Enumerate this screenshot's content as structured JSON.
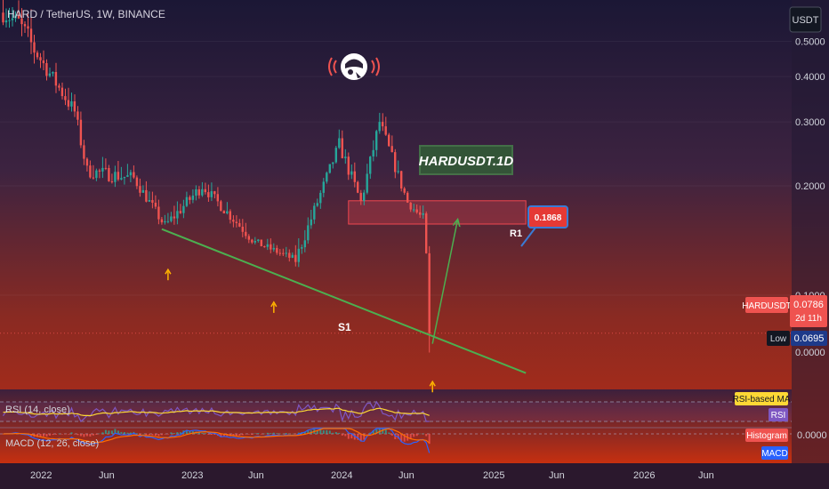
{
  "header": {
    "symbol_line": "HARD / TetherUS, 1W, BINANCE"
  },
  "currency_button": "USDT",
  "price_axis": {
    "ticks": [
      "0.5000",
      "0.4000",
      "0.3000",
      "0.2000",
      "0.1000",
      "0.0000"
    ]
  },
  "badges": {
    "symbol": "HARDUSDT",
    "last_price": "0.0786",
    "countdown": "2d 11h",
    "low_label": "Low",
    "low_value": "0.0695"
  },
  "annotations": {
    "title_box": "HARDUSDT.1D",
    "r1_label": "R1",
    "r1_callout": "0.1868",
    "s1_label": "S1"
  },
  "rsi": {
    "label": "RSI (14, close)",
    "ma_badge": "RSI-based MA",
    "rsi_badge": "RSI"
  },
  "macd": {
    "label": "MACD (12, 26, close)",
    "hist_badge": "Histogram",
    "macd_badge": "MACD",
    "zero_tick": "0.0000"
  },
  "time_axis": {
    "ticks": [
      "2022",
      "Jun",
      "2023",
      "Jun",
      "2024",
      "Jun",
      "2025",
      "Jun",
      "2026",
      "Jun"
    ]
  },
  "colors": {
    "up": "#26a69a",
    "down": "#ef5350",
    "trendline": "#4caf50",
    "arrow": "#ffb300",
    "resistance_zone": "#f0474f",
    "rsi_line": "#7e57c2",
    "rsi_ma": "#fdd835",
    "macd_line": "#2962ff",
    "signal_line": "#ff6d00"
  },
  "chart_data": {
    "type": "candlestick",
    "interval": "1W",
    "y_scale": "log",
    "ylim": [
      0.055,
      0.65
    ],
    "x_range": [
      "2021-11-15",
      "2026-10-01"
    ],
    "series": [
      {
        "start": "2021-11-22",
        "end": "2021-12-27",
        "from": 0.6,
        "to": 0.56,
        "vol": 0.12
      },
      {
        "start": "2021-12-27",
        "end": "2022-02-07",
        "from": 0.56,
        "to": 0.46,
        "vol": 0.16
      },
      {
        "start": "2022-02-07",
        "end": "2022-05-02",
        "from": 0.46,
        "to": 0.32,
        "vol": 0.1
      },
      {
        "start": "2022-05-02",
        "end": "2022-05-30",
        "from": 0.32,
        "to": 0.22,
        "vol": 0.1
      },
      {
        "start": "2022-05-30",
        "end": "2022-09-12",
        "from": 0.22,
        "to": 0.21,
        "vol": 0.09
      },
      {
        "start": "2022-09-12",
        "end": "2022-11-21",
        "from": 0.21,
        "to": 0.155,
        "vol": 0.07
      },
      {
        "start": "2022-11-21",
        "end": "2023-02-13",
        "from": 0.155,
        "to": 0.2,
        "vol": 0.08
      },
      {
        "start": "2023-02-13",
        "end": "2023-06-12",
        "from": 0.2,
        "to": 0.14,
        "vol": 0.07
      },
      {
        "start": "2023-06-12",
        "end": "2023-09-11",
        "from": 0.14,
        "to": 0.125,
        "vol": 0.05
      },
      {
        "start": "2023-09-11",
        "end": "2023-12-18",
        "from": 0.125,
        "to": 0.26,
        "vol": 0.08
      },
      {
        "start": "2023-12-18",
        "end": "2024-02-05",
        "from": 0.26,
        "to": 0.18,
        "vol": 0.09
      },
      {
        "start": "2024-02-05",
        "end": "2024-03-18",
        "from": 0.18,
        "to": 0.3,
        "vol": 0.09
      },
      {
        "start": "2024-03-18",
        "end": "2024-05-20",
        "from": 0.3,
        "to": 0.18,
        "vol": 0.08
      },
      {
        "start": "2024-05-20",
        "end": "2024-06-24",
        "from": 0.18,
        "to": 0.162,
        "vol": 0.05
      },
      {
        "start": "2024-06-24",
        "end": "2024-07-15",
        "from": 0.162,
        "to": 0.0786,
        "vol": 0.08
      }
    ],
    "last_price": 0.0786,
    "low": 0.0695,
    "resistance_zone": {
      "start": "2024-01-08",
      "end": "2025-02-10",
      "low": 0.157,
      "high": 0.182
    },
    "r1": 0.1868,
    "support_trendline": [
      {
        "date": "2022-11-14",
        "value": 0.152
      },
      {
        "date": "2025-02-10",
        "value": 0.061
      }
    ],
    "projection": [
      {
        "date": "2024-07-15",
        "value": 0.0735
      },
      {
        "date": "2024-09-09",
        "value": 0.16
      }
    ],
    "markers": [
      {
        "date": "2022-11-28",
        "value": 0.115
      },
      {
        "date": "2023-07-24",
        "value": 0.0935
      },
      {
        "date": "2024-07-15",
        "value": 0.0565
      }
    ]
  }
}
